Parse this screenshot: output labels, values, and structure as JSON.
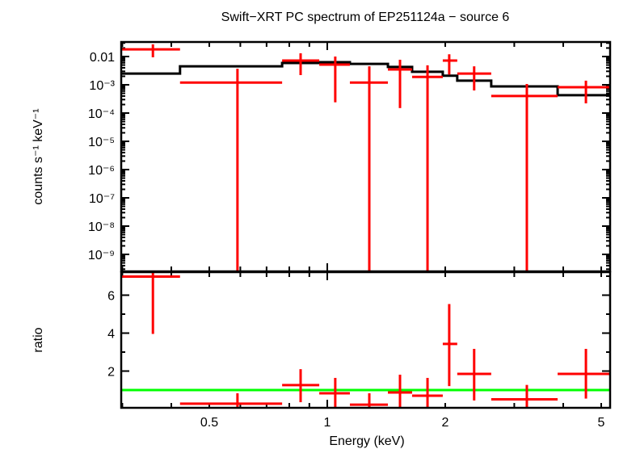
{
  "chart_data": [
    {
      "type": "scatter",
      "title": "Swift−XRT PC spectrum of EP251124a − source 6",
      "xlabel": "Energy (keV)",
      "ylabel": "counts s⁻¹ keV⁻¹",
      "xscale": "log",
      "yscale": "log",
      "xlim": [
        0.298,
        5.27
      ],
      "ylim": [
        2.5e-10,
        0.032
      ],
      "grid": false,
      "y_tick_labels": [
        "0.01",
        "10⁻³",
        "10⁻⁴",
        "10⁻⁵",
        "10⁻⁶",
        "10⁻⁷",
        "10⁻⁸",
        "10⁻⁹"
      ],
      "y_tick_values": [
        0.01,
        0.001,
        0.0001,
        1e-05,
        1e-06,
        1e-07,
        1e-08,
        1e-09
      ],
      "data": {
        "color": "#ff0000",
        "x_low": [
          0.298,
          0.421,
          0.767,
          0.954,
          1.142,
          1.428,
          1.646,
          1.971,
          2.146,
          2.62,
          3.87
        ],
        "x": [
          0.359,
          0.59,
          0.855,
          1.048,
          1.28,
          1.533,
          1.802,
          2.047,
          2.37,
          3.23,
          4.57
        ],
        "x_high": [
          0.421,
          0.767,
          0.954,
          1.142,
          1.428,
          1.646,
          1.971,
          2.146,
          2.62,
          3.87,
          5.27
        ],
        "y": [
          0.018,
          0.0012,
          0.0072,
          0.0052,
          0.0012,
          0.0035,
          0.0019,
          0.0072,
          0.0025,
          0.0004,
          0.00082
        ],
        "y_low": [
          0.0094,
          0,
          0.0022,
          0.00024,
          0,
          0.00015,
          0,
          0.0023,
          0.00063,
          0,
          0.00022
        ],
        "y_high": [
          0.027,
          0.0037,
          0.013,
          0.01,
          0.0045,
          0.0077,
          0.0049,
          0.012,
          0.0045,
          0.00107,
          0.0014
        ]
      },
      "model": {
        "color": "#000000",
        "bin_edges": [
          0.298,
          0.421,
          0.767,
          0.954,
          1.142,
          1.428,
          1.646,
          1.971,
          2.146,
          2.62,
          3.87,
          5.27
        ],
        "values": [
          0.0025,
          0.0045,
          0.0059,
          0.0063,
          0.0055,
          0.0043,
          0.0029,
          0.0021,
          0.0014,
          0.00088,
          0.00043
        ]
      }
    },
    {
      "type": "scatter",
      "xlabel": "Energy (keV)",
      "ylabel": "ratio",
      "xscale": "log",
      "xlim": [
        0.298,
        5.27
      ],
      "ylim": [
        0.06,
        7.15
      ],
      "grid": false,
      "x_tick_labels": [
        "0.5",
        "1",
        "2",
        "5"
      ],
      "x_tick_values": [
        0.5,
        1,
        2,
        5
      ],
      "y_tick_labels": [
        "2",
        "4",
        "6"
      ],
      "y_tick_values": [
        2,
        4,
        6
      ],
      "reference_line": {
        "y": 1,
        "color": "#00ff00"
      },
      "data": {
        "color": "#ff0000",
        "x": [
          0.359,
          0.59,
          0.855,
          1.048,
          1.28,
          1.533,
          1.802,
          2.047,
          2.37,
          3.23,
          4.57
        ],
        "y": [
          6.98,
          0.28,
          1.26,
          0.83,
          0.23,
          0.87,
          0.7,
          3.43,
          1.85,
          0.51,
          1.85
        ],
        "y_low": [
          3.96,
          0,
          0.36,
          0,
          0,
          0,
          0,
          1.21,
          0.45,
          0,
          0.55
        ],
        "y_high": [
          8.5,
          0.83,
          2.1,
          1.64,
          0.83,
          1.81,
          1.64,
          5.53,
          3.17,
          1.27,
          3.17
        ]
      }
    }
  ]
}
